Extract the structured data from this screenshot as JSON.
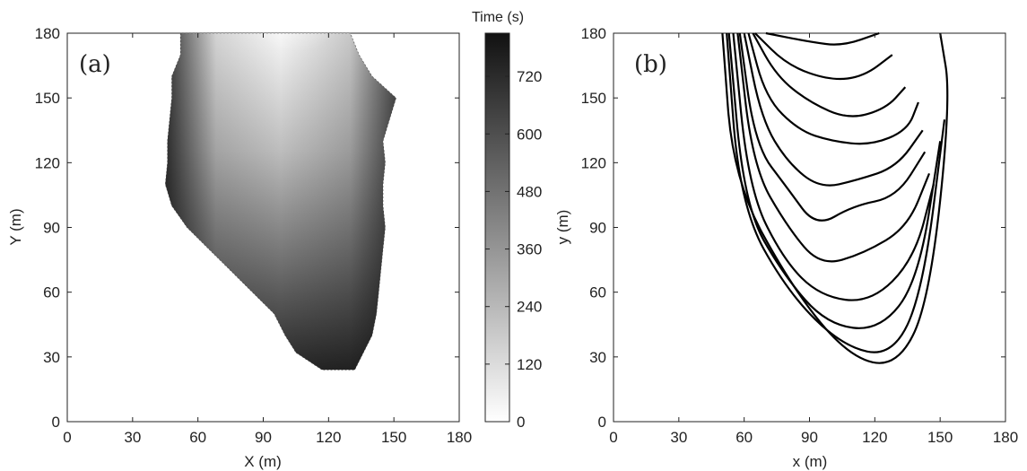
{
  "chart_data": [
    {
      "type": "heatmap",
      "panel_label": "(a)",
      "xlabel": "X (m)",
      "ylabel": "Y (m)",
      "xlim": [
        0,
        180
      ],
      "ylim": [
        0,
        180
      ],
      "xticks": [
        "0",
        "30",
        "60",
        "90",
        "120",
        "150",
        "180"
      ],
      "yticks": [
        "0",
        "30",
        "60",
        "90",
        "120",
        "150",
        "180"
      ],
      "colorbar": {
        "title": "Time (s)",
        "range": [
          0,
          810
        ],
        "ticks": [
          "0",
          "120",
          "240",
          "360",
          "480",
          "600",
          "720"
        ],
        "colormap": [
          "#ffffff",
          "#111111"
        ]
      },
      "burned_region_bounds": [
        {
          "y": 180,
          "x_min": 52,
          "x_max": 130
        },
        {
          "y": 170,
          "x_min": 52,
          "x_max": 134
        },
        {
          "y": 160,
          "x_min": 48,
          "x_max": 140
        },
        {
          "y": 150,
          "x_min": 48,
          "x_max": 151
        },
        {
          "y": 140,
          "x_min": 47,
          "x_max": 148
        },
        {
          "y": 130,
          "x_min": 46,
          "x_max": 145
        },
        {
          "y": 120,
          "x_min": 46,
          "x_max": 146
        },
        {
          "y": 110,
          "x_min": 45,
          "x_max": 145
        },
        {
          "y": 100,
          "x_min": 48,
          "x_max": 145
        },
        {
          "y": 90,
          "x_min": 55,
          "x_max": 146
        },
        {
          "y": 80,
          "x_min": 65,
          "x_max": 145
        },
        {
          "y": 70,
          "x_min": 75,
          "x_max": 144
        },
        {
          "y": 60,
          "x_min": 85,
          "x_max": 143
        },
        {
          "y": 50,
          "x_min": 95,
          "x_max": 142
        },
        {
          "y": 40,
          "x_min": 100,
          "x_max": 140
        },
        {
          "y": 32,
          "x_min": 105,
          "x_max": 136
        },
        {
          "y": 24,
          "x_min": 117,
          "x_max": 132
        }
      ],
      "ignition_point": {
        "x": 105,
        "y": 180,
        "time": 0
      }
    },
    {
      "type": "line",
      "panel_label": "(b)",
      "xlabel": "x (m)",
      "ylabel": "y (m)",
      "xlim": [
        0,
        180
      ],
      "ylim": [
        0,
        180
      ],
      "xticks": [
        "0",
        "30",
        "60",
        "90",
        "120",
        "150",
        "180"
      ],
      "yticks": [
        "0",
        "30",
        "60",
        "90",
        "120",
        "150",
        "180"
      ],
      "line_color": "#000000",
      "description_of_series": "fire front perimeters (top edge at y=180)",
      "series": [
        {
          "x": [
            70,
            90,
            105,
            122
          ],
          "y": [
            180,
            176,
            174,
            180
          ]
        },
        {
          "x": [
            65,
            80,
            100,
            115,
            128
          ],
          "y": [
            180,
            165,
            158,
            160,
            170
          ]
        },
        {
          "x": [
            64,
            75,
            90,
            108,
            125,
            134
          ],
          "y": [
            180,
            160,
            148,
            140,
            145,
            155
          ]
        },
        {
          "x": [
            62,
            70,
            85,
            100,
            118,
            135,
            140
          ],
          "y": [
            180,
            150,
            135,
            130,
            128,
            135,
            148
          ]
        },
        {
          "x": [
            60,
            68,
            80,
            95,
            112,
            130,
            142
          ],
          "y": [
            180,
            140,
            120,
            108,
            112,
            118,
            135
          ]
        },
        {
          "x": [
            58,
            65,
            80,
            93,
            110,
            130,
            143
          ],
          "y": [
            180,
            128,
            108,
            90,
            100,
            104,
            125
          ]
        },
        {
          "x": [
            57,
            64,
            80,
            95,
            115,
            135,
            145
          ],
          "y": [
            180,
            118,
            90,
            72,
            78,
            90,
            115
          ]
        },
        {
          "x": [
            55,
            62,
            78,
            95,
            118,
            138,
            147
          ],
          "y": [
            180,
            108,
            75,
            58,
            55,
            75,
            110
          ]
        },
        {
          "x": [
            53,
            60,
            78,
            98,
            122,
            140,
            150
          ],
          "y": [
            180,
            100,
            68,
            45,
            42,
            65,
            130
          ]
        },
        {
          "x": [
            52,
            58,
            80,
            105,
            128,
            142,
            152
          ],
          "y": [
            180,
            100,
            60,
            35,
            30,
            60,
            140
          ]
        },
        {
          "x": [
            50,
            55,
            82,
            108,
            130,
            145,
            155,
            150
          ],
          "y": [
            180,
            112,
            62,
            30,
            25,
            55,
            150,
            180
          ]
        }
      ]
    }
  ]
}
